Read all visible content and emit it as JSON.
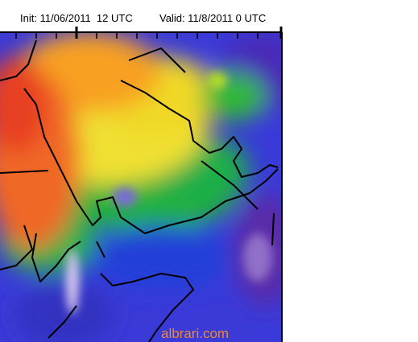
{
  "header": {
    "init": "Init: 11/06/2011  12 UTC",
    "valid": "Valid: 11/8/2011 0 UTC"
  },
  "watermark": "albrari.com"
}
